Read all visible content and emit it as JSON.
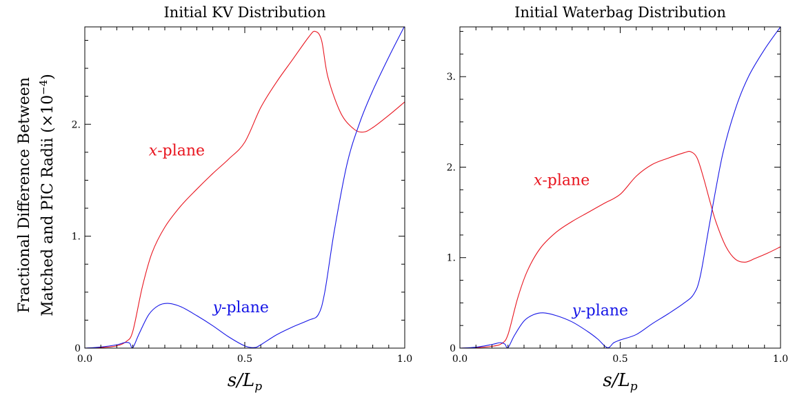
{
  "figure": {
    "ylabel_line1": "Fractional Difference Between",
    "ylabel_line2": "Matched and PIC Radii (×10",
    "ylabel_exp": "−4",
    "ylabel_close": ")"
  },
  "chart_data": [
    {
      "type": "line",
      "title": "Initial KV Distribution",
      "xlabel": "s/L",
      "xlabel_sub": "p",
      "xlim": [
        0,
        1
      ],
      "ylim": [
        0,
        2.87
      ],
      "xticks": [
        0.0,
        0.5,
        1.0
      ],
      "xtick_labels": [
        "0.0",
        "0.5",
        "1.0"
      ],
      "yticks": [
        0,
        1,
        2
      ],
      "ytick_labels": [
        "0",
        "1.",
        "2."
      ],
      "series": [
        {
          "name": "x-plane",
          "label_italic": "x",
          "label_rest": "-plane",
          "label_at": [
            0.2,
            1.72
          ],
          "color": "#e8141e",
          "x": [
            0,
            0.05,
            0.1,
            0.13,
            0.15,
            0.18,
            0.21,
            0.25,
            0.3,
            0.35,
            0.4,
            0.45,
            0.5,
            0.55,
            0.6,
            0.65,
            0.7,
            0.72,
            0.74,
            0.76,
            0.8,
            0.84,
            0.87,
            0.9,
            0.95,
            1.0
          ],
          "y": [
            0,
            0.005,
            0.02,
            0.06,
            0.15,
            0.55,
            0.85,
            1.08,
            1.27,
            1.42,
            1.56,
            1.69,
            1.84,
            2.15,
            2.38,
            2.58,
            2.78,
            2.83,
            2.75,
            2.42,
            2.1,
            1.96,
            1.93,
            1.97,
            2.08,
            2.2
          ]
        },
        {
          "name": "y-plane",
          "label_italic": "y",
          "label_rest": "-plane",
          "label_at": [
            0.4,
            0.32
          ],
          "color": "#1414e6",
          "x": [
            0,
            0.05,
            0.1,
            0.125,
            0.14,
            0.15,
            0.17,
            0.2,
            0.23,
            0.26,
            0.3,
            0.35,
            0.4,
            0.45,
            0.5,
            0.53,
            0.55,
            0.6,
            0.65,
            0.7,
            0.73,
            0.75,
            0.78,
            0.82,
            0.86,
            0.9,
            0.95,
            1.0
          ],
          "y": [
            0,
            0.01,
            0.03,
            0.05,
            0.045,
            0.005,
            0.13,
            0.3,
            0.38,
            0.4,
            0.37,
            0.29,
            0.2,
            0.1,
            0.02,
            0.005,
            0.03,
            0.12,
            0.19,
            0.25,
            0.3,
            0.5,
            1.05,
            1.65,
            2.02,
            2.3,
            2.6,
            2.88
          ]
        }
      ]
    },
    {
      "type": "line",
      "title": "Initial Waterbag Distribution",
      "xlabel": "s/L",
      "xlabel_sub": "p",
      "xlim": [
        0,
        1
      ],
      "ylim": [
        0,
        3.55
      ],
      "xticks": [
        0.0,
        0.5,
        1.0
      ],
      "xtick_labels": [
        "0.0",
        "0.5",
        "1.0"
      ],
      "yticks": [
        0,
        1,
        2,
        3
      ],
      "ytick_labels": [
        "0",
        "1.",
        "2.",
        "3."
      ],
      "series": [
        {
          "name": "x-plane",
          "label_italic": "x",
          "label_rest": "-plane",
          "label_at": [
            0.23,
            1.8
          ],
          "color": "#e8141e",
          "x": [
            0,
            0.05,
            0.1,
            0.13,
            0.15,
            0.18,
            0.21,
            0.25,
            0.3,
            0.35,
            0.4,
            0.45,
            0.5,
            0.55,
            0.6,
            0.65,
            0.7,
            0.72,
            0.74,
            0.76,
            0.78,
            0.8,
            0.83,
            0.86,
            0.89,
            0.92,
            0.96,
            1.0
          ],
          "y": [
            0,
            0.005,
            0.02,
            0.05,
            0.15,
            0.55,
            0.85,
            1.1,
            1.28,
            1.4,
            1.5,
            1.6,
            1.7,
            1.9,
            2.03,
            2.1,
            2.16,
            2.17,
            2.1,
            1.88,
            1.62,
            1.38,
            1.12,
            0.98,
            0.95,
            0.99,
            1.05,
            1.12
          ]
        },
        {
          "name": "y-plane",
          "label_italic": "y",
          "label_rest": "-plane",
          "label_at": [
            0.35,
            0.36
          ],
          "color": "#1414e6",
          "x": [
            0,
            0.05,
            0.1,
            0.125,
            0.14,
            0.15,
            0.17,
            0.2,
            0.23,
            0.26,
            0.3,
            0.35,
            0.4,
            0.43,
            0.46,
            0.48,
            0.5,
            0.55,
            0.6,
            0.65,
            0.7,
            0.73,
            0.75,
            0.78,
            0.82,
            0.86,
            0.9,
            0.95,
            1.0
          ],
          "y": [
            0,
            0.01,
            0.04,
            0.06,
            0.045,
            0.005,
            0.14,
            0.3,
            0.37,
            0.39,
            0.36,
            0.29,
            0.18,
            0.1,
            0.005,
            0.06,
            0.09,
            0.15,
            0.27,
            0.38,
            0.5,
            0.6,
            0.8,
            1.4,
            2.15,
            2.65,
            3.0,
            3.3,
            3.55
          ]
        }
      ]
    }
  ]
}
